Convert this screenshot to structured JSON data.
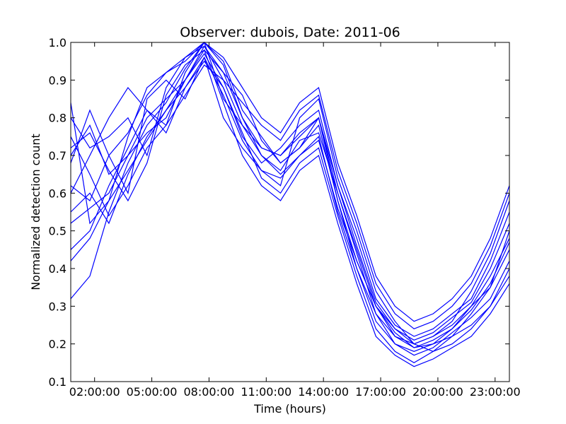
{
  "chart_data": {
    "type": "line",
    "title": "Observer: dubois, Date: 2011-06",
    "xlabel": "Time (hours)",
    "ylabel": "Normalized detection count",
    "x": [
      0.75,
      1.75,
      2.75,
      3.75,
      4.75,
      5.75,
      6.75,
      7.75,
      8.75,
      9.75,
      10.75,
      11.75,
      12.75,
      13.75,
      14.75,
      15.75,
      16.75,
      17.75,
      18.75,
      19.75,
      20.75,
      21.75,
      22.75,
      23.75
    ],
    "xlim": [
      0.75,
      23.75
    ],
    "ylim": [
      0.1,
      1.0
    ],
    "x_ticks": [
      2,
      5,
      8,
      11,
      14,
      17,
      20,
      23
    ],
    "x_tick_labels": [
      "02:00:00",
      "05:00:00",
      "08:00:00",
      "11:00:00",
      "14:00:00",
      "17:00:00",
      "20:00:00",
      "23:00:00"
    ],
    "y_ticks": [
      0.1,
      0.2,
      0.3,
      0.4,
      0.5,
      0.6,
      0.7,
      0.8,
      0.9,
      1.0
    ],
    "y_tick_labels": [
      "0.1",
      "0.2",
      "0.3",
      "0.4",
      "0.5",
      "0.6",
      "0.7",
      "0.8",
      "0.9",
      "1.0"
    ],
    "line_color": "#0000ff",
    "grid": false,
    "series": [
      {
        "values": [
          0.84,
          0.52,
          0.58,
          0.75,
          0.88,
          0.92,
          0.95,
          1.0,
          0.85,
          0.78,
          0.72,
          0.7,
          0.75,
          0.8,
          0.6,
          0.45,
          0.3,
          0.22,
          0.2,
          0.22,
          0.25,
          0.3,
          0.35,
          0.45
        ]
      },
      {
        "values": [
          0.7,
          0.78,
          0.65,
          0.7,
          0.8,
          0.85,
          0.9,
          0.98,
          0.92,
          0.8,
          0.7,
          0.65,
          0.7,
          0.75,
          0.55,
          0.4,
          0.28,
          0.2,
          0.18,
          0.2,
          0.22,
          0.25,
          0.3,
          0.4
        ]
      },
      {
        "values": [
          0.55,
          0.6,
          0.52,
          0.65,
          0.75,
          0.82,
          0.88,
          0.95,
          0.88,
          0.75,
          0.68,
          0.72,
          0.78,
          0.82,
          0.62,
          0.48,
          0.32,
          0.25,
          0.22,
          0.24,
          0.28,
          0.32,
          0.42,
          0.55
        ]
      },
      {
        "values": [
          0.45,
          0.5,
          0.62,
          0.72,
          0.82,
          0.78,
          0.92,
          1.0,
          0.95,
          0.82,
          0.75,
          0.68,
          0.72,
          0.78,
          0.58,
          0.42,
          0.3,
          0.24,
          0.2,
          0.18,
          0.22,
          0.28,
          0.35,
          0.5
        ]
      },
      {
        "values": [
          0.8,
          0.72,
          0.75,
          0.8,
          0.7,
          0.88,
          0.96,
          0.99,
          0.9,
          0.78,
          0.7,
          0.66,
          0.74,
          0.76,
          0.6,
          0.44,
          0.28,
          0.22,
          0.19,
          0.21,
          0.24,
          0.3,
          0.38,
          0.48
        ]
      },
      {
        "values": [
          0.68,
          0.82,
          0.7,
          0.6,
          0.85,
          0.9,
          0.85,
          0.96,
          0.86,
          0.74,
          0.66,
          0.62,
          0.8,
          0.85,
          0.64,
          0.5,
          0.34,
          0.26,
          0.2,
          0.22,
          0.26,
          0.34,
          0.44,
          0.58
        ]
      },
      {
        "values": [
          0.32,
          0.38,
          0.55,
          0.68,
          0.78,
          0.84,
          0.93,
          1.0,
          0.94,
          0.8,
          0.72,
          0.7,
          0.76,
          0.8,
          0.58,
          0.4,
          0.26,
          0.2,
          0.17,
          0.19,
          0.23,
          0.27,
          0.32,
          0.42
        ]
      },
      {
        "values": [
          0.52,
          0.56,
          0.6,
          0.7,
          0.76,
          0.8,
          0.9,
          0.97,
          0.88,
          0.76,
          0.64,
          0.6,
          0.68,
          0.72,
          0.54,
          0.38,
          0.24,
          0.18,
          0.15,
          0.18,
          0.2,
          0.24,
          0.3,
          0.38
        ]
      },
      {
        "values": [
          0.75,
          0.65,
          0.54,
          0.62,
          0.72,
          0.78,
          0.86,
          0.94,
          0.9,
          0.84,
          0.78,
          0.74,
          0.82,
          0.86,
          0.66,
          0.52,
          0.36,
          0.28,
          0.24,
          0.26,
          0.3,
          0.36,
          0.46,
          0.6
        ]
      },
      {
        "values": [
          0.6,
          0.7,
          0.8,
          0.88,
          0.82,
          0.76,
          0.88,
          0.96,
          0.8,
          0.72,
          0.66,
          0.64,
          0.7,
          0.74,
          0.56,
          0.42,
          0.3,
          0.23,
          0.19,
          0.2,
          0.24,
          0.29,
          0.36,
          0.47
        ]
      },
      {
        "values": [
          0.42,
          0.48,
          0.58,
          0.66,
          0.74,
          0.82,
          0.9,
          0.99,
          0.92,
          0.86,
          0.74,
          0.68,
          0.72,
          0.8,
          0.62,
          0.46,
          0.31,
          0.24,
          0.21,
          0.23,
          0.27,
          0.31,
          0.4,
          0.52
        ]
      },
      {
        "values": [
          0.72,
          0.76,
          0.66,
          0.58,
          0.68,
          0.86,
          0.94,
          0.98,
          0.84,
          0.7,
          0.62,
          0.58,
          0.66,
          0.7,
          0.52,
          0.36,
          0.22,
          0.17,
          0.14,
          0.16,
          0.19,
          0.22,
          0.28,
          0.36
        ]
      },
      {
        "values": [
          0.62,
          0.58,
          0.7,
          0.76,
          0.86,
          0.92,
          0.96,
          1.0,
          0.96,
          0.88,
          0.8,
          0.76,
          0.84,
          0.88,
          0.68,
          0.54,
          0.38,
          0.3,
          0.26,
          0.28,
          0.32,
          0.38,
          0.48,
          0.62
        ]
      }
    ]
  }
}
